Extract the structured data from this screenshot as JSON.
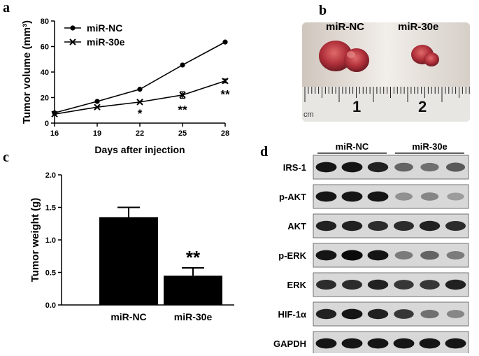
{
  "panels": {
    "a": "a",
    "b": "b",
    "c": "c",
    "d": "d"
  },
  "chart_data": [
    {
      "type": "line",
      "panel": "a",
      "ylabel": "Tumor volume (mm³)",
      "xlabel": "Days after injection",
      "x": [
        16,
        19,
        22,
        25,
        28
      ],
      "xlim": [
        16,
        28
      ],
      "ylim": [
        0,
        80
      ],
      "yticks": [
        0,
        20,
        40,
        60,
        80
      ],
      "series": [
        {
          "name": "miR-NC",
          "marker": "circle",
          "values": [
            8,
            17,
            26.5,
            45.5,
            63.5
          ]
        },
        {
          "name": "miR-30e",
          "marker": "x",
          "values": [
            7,
            12.5,
            16.5,
            22,
            33
          ],
          "errors": [
            0,
            0,
            0,
            2.5,
            1.5
          ]
        }
      ],
      "annotations": [
        {
          "x": 22,
          "text": "*"
        },
        {
          "x": 25,
          "text": "**"
        },
        {
          "x": 28,
          "text": "**"
        }
      ],
      "legend_position": "top-left",
      "grid": false
    },
    {
      "type": "bar",
      "panel": "c",
      "categories": [
        "miR-NC",
        "miR-30e"
      ],
      "values": [
        1.35,
        0.45
      ],
      "errors": [
        0.15,
        0.12
      ],
      "ylabel": "Tumor weight (g)",
      "ylim": [
        0,
        2.0
      ],
      "yticks": [
        "0.0",
        "0.5",
        "1.0",
        "1.5",
        "2.0"
      ],
      "annotation": "**",
      "bar_color": "#000000",
      "grid": false
    }
  ],
  "photo": {
    "labels": [
      "miR-NC",
      "miR-30e"
    ],
    "ruler_numbers": [
      "1",
      "2"
    ],
    "ruler_unit": "cm"
  },
  "blot": {
    "groups": [
      "miR-NC",
      "miR-30e"
    ],
    "rows": [
      {
        "label": "IRS-1",
        "intensity": [
          0.95,
          0.95,
          0.9,
          0.6,
          0.55,
          0.65
        ]
      },
      {
        "label": "p-AKT",
        "intensity": [
          0.95,
          0.95,
          0.95,
          0.4,
          0.45,
          0.35
        ]
      },
      {
        "label": "AKT",
        "intensity": [
          0.9,
          0.9,
          0.85,
          0.85,
          0.9,
          0.85
        ]
      },
      {
        "label": "p-ERK",
        "intensity": [
          0.95,
          1.0,
          0.95,
          0.5,
          0.6,
          0.5
        ]
      },
      {
        "label": "ERK",
        "intensity": [
          0.85,
          0.85,
          0.9,
          0.8,
          0.8,
          0.9
        ]
      },
      {
        "label": "HIF-1α",
        "intensity": [
          0.9,
          0.95,
          0.9,
          0.8,
          0.55,
          0.45
        ]
      },
      {
        "label": "GAPDH",
        "intensity": [
          0.95,
          0.95,
          0.95,
          0.95,
          0.95,
          0.95
        ]
      }
    ]
  },
  "colors": {
    "ink": "#000000",
    "blot_bg": "#d8d8d8",
    "tumor": "#b0303a",
    "photo_bg": "#e9e4df"
  }
}
